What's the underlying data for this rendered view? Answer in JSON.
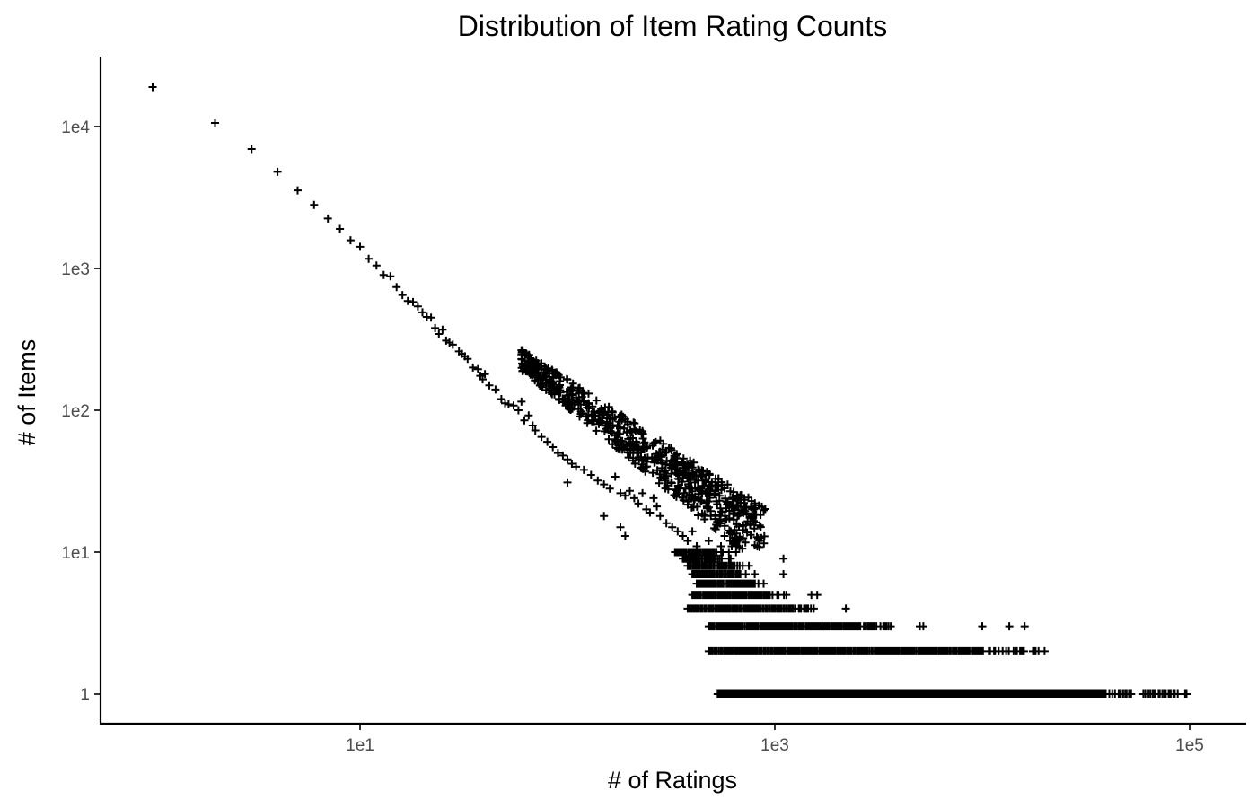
{
  "chart_data": {
    "type": "scatter",
    "title": "Distribution of Item Rating Counts",
    "xlabel": "# of Ratings",
    "ylabel": "# of Items",
    "x_scale": "log10",
    "y_scale": "log10",
    "xlim": [
      0.55,
      130000
    ],
    "ylim": [
      0.6,
      30000
    ],
    "grid": false,
    "legend": null,
    "marker": "+",
    "marker_color": "#000000",
    "x_ticks": [
      {
        "value": 10,
        "label": "1e1"
      },
      {
        "value": 1000,
        "label": "1e3"
      },
      {
        "value": 100000,
        "label": "1e5"
      }
    ],
    "y_ticks": [
      {
        "value": 1,
        "label": "1"
      },
      {
        "value": 10,
        "label": "1e1"
      },
      {
        "value": 100,
        "label": "1e2"
      },
      {
        "value": 1000,
        "label": "1e3"
      },
      {
        "value": 10000,
        "label": "1e4"
      }
    ],
    "points": [
      {
        "x": 1,
        "y": 19000
      },
      {
        "x": 2,
        "y": 10600
      },
      {
        "x": 3,
        "y": 6950
      },
      {
        "x": 4,
        "y": 4800
      },
      {
        "x": 5,
        "y": 3550
      },
      {
        "x": 6,
        "y": 2800
      },
      {
        "x": 7,
        "y": 2250
      },
      {
        "x": 8,
        "y": 1900
      },
      {
        "x": 9,
        "y": 1580
      },
      {
        "x": 10,
        "y": 1420
      },
      {
        "x": 11,
        "y": 1170
      },
      {
        "x": 12,
        "y": 1050
      },
      {
        "x": 13,
        "y": 900
      },
      {
        "x": 14,
        "y": 880
      },
      {
        "x": 15,
        "y": 740
      },
      {
        "x": 16,
        "y": 650
      },
      {
        "x": 17,
        "y": 590
      },
      {
        "x": 18,
        "y": 580
      },
      {
        "x": 19,
        "y": 540
      },
      {
        "x": 20,
        "y": 490
      },
      {
        "x": 21,
        "y": 455
      },
      {
        "x": 22,
        "y": 450
      },
      {
        "x": 23,
        "y": 380
      },
      {
        "x": 24,
        "y": 345
      },
      {
        "x": 25,
        "y": 370
      },
      {
        "x": 26,
        "y": 310
      },
      {
        "x": 27,
        "y": 300
      },
      {
        "x": 28,
        "y": 290
      },
      {
        "x": 30,
        "y": 260
      },
      {
        "x": 31,
        "y": 250
      },
      {
        "x": 32,
        "y": 240
      },
      {
        "x": 33,
        "y": 230
      },
      {
        "x": 35,
        "y": 200
      },
      {
        "x": 37,
        "y": 195
      },
      {
        "x": 38,
        "y": 175
      },
      {
        "x": 39,
        "y": 165
      },
      {
        "x": 40,
        "y": 180
      },
      {
        "x": 42,
        "y": 150
      },
      {
        "x": 45,
        "y": 140
      },
      {
        "x": 48,
        "y": 120
      },
      {
        "x": 50,
        "y": 112
      },
      {
        "x": 52,
        "y": 110
      },
      {
        "x": 55,
        "y": 108
      },
      {
        "x": 58,
        "y": 100
      },
      {
        "x": 60,
        "y": 115
      },
      {
        "x": 62,
        "y": 85
      },
      {
        "x": 65,
        "y": 92
      },
      {
        "x": 68,
        "y": 78
      },
      {
        "x": 70,
        "y": 72
      },
      {
        "x": 75,
        "y": 65
      },
      {
        "x": 80,
        "y": 60
      },
      {
        "x": 85,
        "y": 55
      },
      {
        "x": 90,
        "y": 50
      },
      {
        "x": 95,
        "y": 48
      },
      {
        "x": 100,
        "y": 45
      },
      {
        "x": 105,
        "y": 42
      },
      {
        "x": 110,
        "y": 40
      },
      {
        "x": 100,
        "y": 31
      },
      {
        "x": 120,
        "y": 38
      },
      {
        "x": 130,
        "y": 35
      },
      {
        "x": 140,
        "y": 32
      },
      {
        "x": 150,
        "y": 30
      },
      {
        "x": 160,
        "y": 28
      },
      {
        "x": 170,
        "y": 34
      },
      {
        "x": 180,
        "y": 26
      },
      {
        "x": 190,
        "y": 25
      },
      {
        "x": 200,
        "y": 27
      },
      {
        "x": 210,
        "y": 24
      },
      {
        "x": 220,
        "y": 22
      },
      {
        "x": 230,
        "y": 26
      },
      {
        "x": 240,
        "y": 20
      },
      {
        "x": 250,
        "y": 19
      },
      {
        "x": 260,
        "y": 24
      },
      {
        "x": 270,
        "y": 21
      },
      {
        "x": 280,
        "y": 18
      },
      {
        "x": 300,
        "y": 16
      },
      {
        "x": 150,
        "y": 18
      },
      {
        "x": 180,
        "y": 15
      },
      {
        "x": 190,
        "y": 13
      },
      {
        "x": 320,
        "y": 15
      },
      {
        "x": 340,
        "y": 14
      },
      {
        "x": 360,
        "y": 13
      },
      {
        "x": 380,
        "y": 12
      },
      {
        "x": 400,
        "y": 14
      },
      {
        "x": 420,
        "y": 11
      },
      {
        "x": 450,
        "y": 10
      },
      {
        "x": 480,
        "y": 12
      },
      {
        "x": 500,
        "y": 9
      },
      {
        "x": 550,
        "y": 11
      },
      {
        "x": 600,
        "y": 10
      },
      {
        "x": 620,
        "y": 11
      },
      {
        "x": 650,
        "y": 10
      },
      {
        "x": 700,
        "y": 8
      },
      {
        "x": 750,
        "y": 8
      },
      {
        "x": 800,
        "y": 7
      },
      {
        "x": 1100,
        "y": 9
      },
      {
        "x": 1100,
        "y": 7
      },
      {
        "x": 1500,
        "y": 5
      },
      {
        "x": 1600,
        "y": 5
      },
      {
        "x": 2200,
        "y": 4
      },
      {
        "x": 5000,
        "y": 3
      },
      {
        "x": 5200,
        "y": 3
      },
      {
        "x": 10000,
        "y": 3
      },
      {
        "x": 13500,
        "y": 3
      },
      {
        "x": 16000,
        "y": 3
      }
    ],
    "bands": [
      {
        "y": 1,
        "x_start": 530,
        "x_end": 102000,
        "density": "dense",
        "note": "continuous run of items with 1 rating-count bucket"
      },
      {
        "y": 2,
        "x_start": 480,
        "x_end": 20000,
        "density": "dense"
      },
      {
        "y": 3,
        "x_start": 480,
        "x_end": 3800,
        "density": "dense"
      },
      {
        "y": 4,
        "x_start": 380,
        "x_end": 1600,
        "density": "dense"
      },
      {
        "y": 5,
        "x_start": 400,
        "x_end": 1150,
        "density": "dense"
      },
      {
        "y": 6,
        "x_start": 420,
        "x_end": 900,
        "density": "dense"
      },
      {
        "y": 7,
        "x_start": 400,
        "x_end": 750,
        "density": "dense"
      },
      {
        "y": 8,
        "x_start": 380,
        "x_end": 700,
        "density": "dense"
      },
      {
        "y": 9,
        "x_start": 360,
        "x_end": 620,
        "density": "dense"
      },
      {
        "y": 10,
        "x_start": 330,
        "x_end": 580,
        "density": "dense"
      }
    ]
  }
}
